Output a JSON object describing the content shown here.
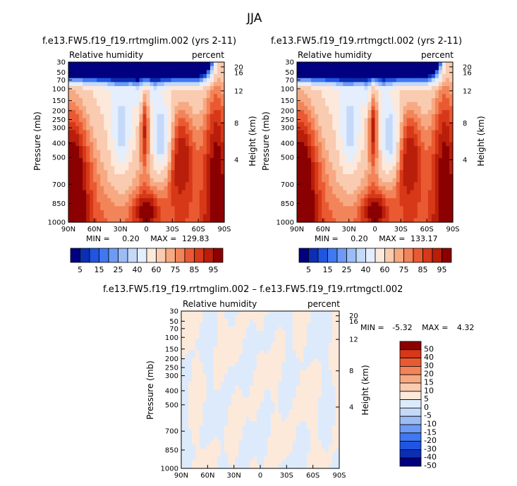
{
  "figure_title": "JJA",
  "palette_main": [
    "#000080",
    "#0a2fb4",
    "#1f55e0",
    "#3f78f0",
    "#6d9af5",
    "#9cbcf7",
    "#c5d9f9",
    "#e4eefc",
    "#fce9dc",
    "#f9cbb0",
    "#f6a982",
    "#f28459",
    "#ea5a32",
    "#d63818",
    "#b81e0a",
    "#8b0000"
  ],
  "palette_diff": [
    "#000080",
    "#0a2fb4",
    "#1f55e0",
    "#3f78f0",
    "#6d9af5",
    "#9cbcf7",
    "#c5d9f9",
    "#ddeafb",
    "#fde9da",
    "#f9cbb0",
    "#f6a982",
    "#f28459",
    "#ea5a32",
    "#d63818",
    "#8b0000"
  ],
  "chart_data": [
    {
      "type": "contour",
      "title": "f.e13.FW5.f19_f19.rrtmglim.002 (yrs 2-11)",
      "variable": "Relative humidity",
      "units": "percent",
      "ylabel": "Pressure (mb)",
      "ylabel_right": "Height (km)",
      "xticks": [
        "90N",
        "60N",
        "30N",
        "0",
        "30S",
        "60S",
        "90S"
      ],
      "yticks": [
        "30",
        "50",
        "70",
        "100",
        "150",
        "200",
        "250",
        "300",
        "400",
        "500",
        "700",
        "850",
        "1000"
      ],
      "height_ticks": [
        "20",
        "16",
        "12",
        "8",
        "4"
      ],
      "min_label": "MIN =",
      "min_value": "0.20",
      "max_label": "MAX =",
      "max_value": "129.83",
      "levels": [
        "5",
        "15",
        "25",
        "40",
        "60",
        "75",
        "85",
        "95"
      ],
      "field": "main"
    },
    {
      "type": "contour",
      "title": "f.e13.FW5.f19_f19.rrtmgctl.002 (yrs 2-11)",
      "variable": "Relative humidity",
      "units": "percent",
      "ylabel": "Pressure (mb)",
      "ylabel_right": "Height (km)",
      "xticks": [
        "90N",
        "60N",
        "30N",
        "0",
        "30S",
        "60S",
        "90S"
      ],
      "yticks": [
        "30",
        "50",
        "70",
        "100",
        "150",
        "200",
        "250",
        "300",
        "400",
        "500",
        "700",
        "850",
        "1000"
      ],
      "height_ticks": [
        "20",
        "16",
        "12",
        "8",
        "4"
      ],
      "min_label": "MIN =",
      "min_value": "0.20",
      "max_label": "MAX =",
      "max_value": "133.17",
      "levels": [
        "5",
        "15",
        "25",
        "40",
        "60",
        "75",
        "85",
        "95"
      ],
      "field": "main"
    },
    {
      "type": "contour",
      "title": "f.e13.FW5.f19_f19.rrtmglim.002 – f.e13.FW5.f19_f19.rrtmgctl.002",
      "variable": "Relative humidity",
      "units": "percent",
      "ylabel": "Pressure (mb)",
      "ylabel_right": "Height (km)",
      "xticks": [
        "90N",
        "60N",
        "30N",
        "0",
        "30S",
        "60S",
        "90S"
      ],
      "yticks": [
        "30",
        "50",
        "70",
        "100",
        "150",
        "200",
        "250",
        "300",
        "400",
        "500",
        "700",
        "850",
        "1000"
      ],
      "height_ticks": [
        "20",
        "16",
        "12",
        "8",
        "4"
      ],
      "min_label": "MIN =",
      "min_value": "-5.32",
      "max_label": "MAX =",
      "max_value": "4.32",
      "levels": [
        "50",
        "40",
        "30",
        "20",
        "15",
        "10",
        "5",
        "0",
        "-5",
        "-10",
        "-15",
        "-20",
        "-30",
        "-40",
        "-50"
      ],
      "field": "diff"
    }
  ]
}
